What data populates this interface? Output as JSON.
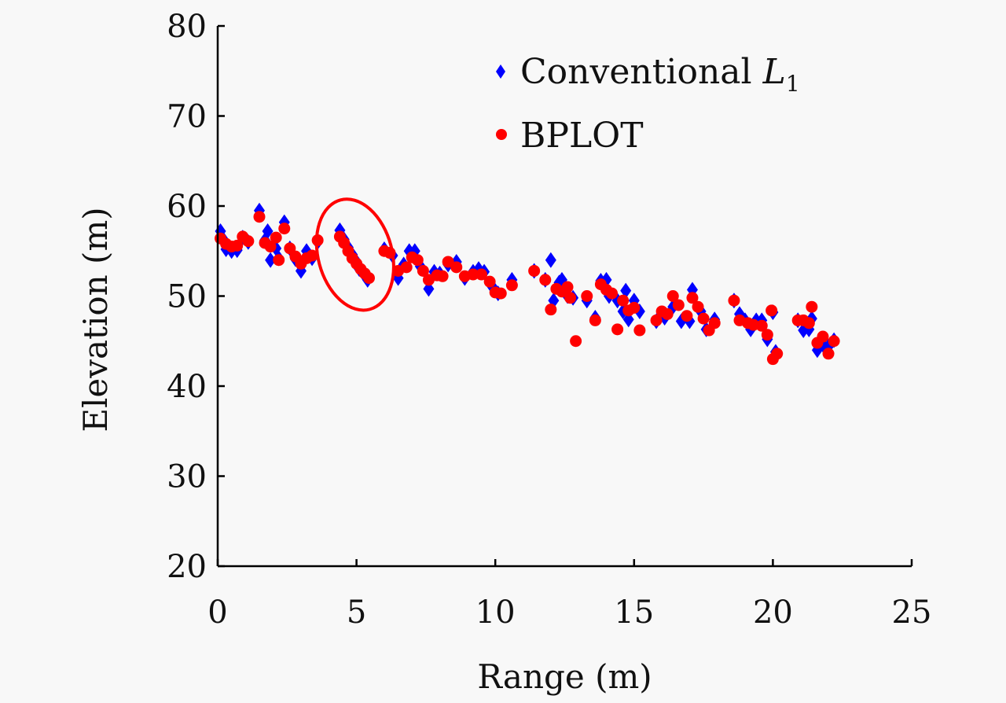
{
  "chart_data": {
    "type": "scatter",
    "title": "",
    "xlabel": "Range (m)",
    "ylabel": "Elevation (m)",
    "xlim": [
      0,
      25
    ],
    "ylim": [
      20,
      80
    ],
    "xticks": [
      0,
      5,
      10,
      15,
      20,
      25
    ],
    "yticks": [
      20,
      30,
      40,
      50,
      60,
      70,
      80
    ],
    "grid": false,
    "legend_position": "top-right",
    "annotation": {
      "type": "ellipse",
      "description": "red ellipse highlighting points near range 4.4-5.4 m, elevation 52-57 m",
      "center": [
        4.95,
        54.6
      ],
      "color": "#ff0000"
    },
    "series": [
      {
        "name": "Conventional L1",
        "legend_label": "Conventional ",
        "legend_math": "L",
        "legend_sub": "1",
        "marker": "diamond",
        "color": "#0000ff",
        "points": [
          [
            0.1,
            57.2
          ],
          [
            0.2,
            56.3
          ],
          [
            0.3,
            55.2
          ],
          [
            0.5,
            55.0
          ],
          [
            0.7,
            55.1
          ],
          [
            0.9,
            56.5
          ],
          [
            1.1,
            56.0
          ],
          [
            1.5,
            59.5
          ],
          [
            1.7,
            56.2
          ],
          [
            1.8,
            57.2
          ],
          [
            1.9,
            54.0
          ],
          [
            2.1,
            55.3
          ],
          [
            2.2,
            54.2
          ],
          [
            2.4,
            58.2
          ],
          [
            2.6,
            55.3
          ],
          [
            2.8,
            54.1
          ],
          [
            3.0,
            52.8
          ],
          [
            3.2,
            55.0
          ],
          [
            3.4,
            54.2
          ],
          [
            3.6,
            56.0
          ],
          [
            4.4,
            57.3
          ],
          [
            4.55,
            56.3
          ],
          [
            4.7,
            55.4
          ],
          [
            4.85,
            54.6
          ],
          [
            5.0,
            53.8
          ],
          [
            5.1,
            53.0
          ],
          [
            5.25,
            52.5
          ],
          [
            5.4,
            51.8
          ],
          [
            6.0,
            55.2
          ],
          [
            6.3,
            54.5
          ],
          [
            6.5,
            52.0
          ],
          [
            6.7,
            53.5
          ],
          [
            6.9,
            55.0
          ],
          [
            7.1,
            55.0
          ],
          [
            7.3,
            53.3
          ],
          [
            7.6,
            50.8
          ],
          [
            7.8,
            52.7
          ],
          [
            8.0,
            52.5
          ],
          [
            8.3,
            53.5
          ],
          [
            8.6,
            53.8
          ],
          [
            8.9,
            52.0
          ],
          [
            9.2,
            52.7
          ],
          [
            9.4,
            53.0
          ],
          [
            9.6,
            52.7
          ],
          [
            9.9,
            51.0
          ],
          [
            10.1,
            50.3
          ],
          [
            10.6,
            51.8
          ],
          [
            11.4,
            52.8
          ],
          [
            11.8,
            51.8
          ],
          [
            12.0,
            54.0
          ],
          [
            12.1,
            49.5
          ],
          [
            12.3,
            51.5
          ],
          [
            12.4,
            51.8
          ],
          [
            12.6,
            50.0
          ],
          [
            12.8,
            49.8
          ],
          [
            13.3,
            49.5
          ],
          [
            13.6,
            47.6
          ],
          [
            13.8,
            51.7
          ],
          [
            14.0,
            51.8
          ],
          [
            14.1,
            50.0
          ],
          [
            14.4,
            49.5
          ],
          [
            14.6,
            48.3
          ],
          [
            14.7,
            50.6
          ],
          [
            14.8,
            47.4
          ],
          [
            15.0,
            49.5
          ],
          [
            15.2,
            48.3
          ],
          [
            15.8,
            47.2
          ],
          [
            16.1,
            47.6
          ],
          [
            16.4,
            48.8
          ],
          [
            16.7,
            47.2
          ],
          [
            17.0,
            47.2
          ],
          [
            17.1,
            50.7
          ],
          [
            17.4,
            48.3
          ],
          [
            17.6,
            46.3
          ],
          [
            17.9,
            47.4
          ],
          [
            18.6,
            49.5
          ],
          [
            18.8,
            48.0
          ],
          [
            19.0,
            47.3
          ],
          [
            19.2,
            46.3
          ],
          [
            19.4,
            47.3
          ],
          [
            19.6,
            47.3
          ],
          [
            19.8,
            45.2
          ],
          [
            20.0,
            48.2
          ],
          [
            20.1,
            43.8
          ],
          [
            20.9,
            47.3
          ],
          [
            21.1,
            46.2
          ],
          [
            21.3,
            46.3
          ],
          [
            21.4,
            47.5
          ],
          [
            21.6,
            44.0
          ],
          [
            21.8,
            44.6
          ],
          [
            22.0,
            44.4
          ],
          [
            22.2,
            45.1
          ]
        ]
      },
      {
        "name": "BPLOT",
        "legend_label": "BPLOT",
        "marker": "circle",
        "color": "#ff0000",
        "points": [
          [
            0.1,
            56.4
          ],
          [
            0.3,
            55.8
          ],
          [
            0.5,
            55.5
          ],
          [
            0.7,
            55.6
          ],
          [
            0.9,
            56.6
          ],
          [
            1.1,
            56.1
          ],
          [
            1.5,
            58.8
          ],
          [
            1.7,
            55.9
          ],
          [
            1.9,
            55.5
          ],
          [
            2.1,
            56.5
          ],
          [
            2.2,
            54.0
          ],
          [
            2.4,
            57.5
          ],
          [
            2.6,
            55.3
          ],
          [
            2.8,
            54.4
          ],
          [
            3.0,
            53.6
          ],
          [
            3.2,
            54.2
          ],
          [
            3.4,
            54.5
          ],
          [
            3.6,
            56.2
          ],
          [
            4.4,
            56.6
          ],
          [
            4.55,
            55.9
          ],
          [
            4.7,
            55.0
          ],
          [
            4.85,
            54.2
          ],
          [
            5.0,
            53.6
          ],
          [
            5.15,
            53.0
          ],
          [
            5.3,
            52.5
          ],
          [
            5.45,
            52.0
          ],
          [
            6.0,
            55.0
          ],
          [
            6.2,
            54.8
          ],
          [
            6.5,
            52.8
          ],
          [
            6.8,
            53.2
          ],
          [
            7.0,
            54.3
          ],
          [
            7.2,
            54.0
          ],
          [
            7.4,
            52.8
          ],
          [
            7.6,
            51.8
          ],
          [
            7.9,
            52.3
          ],
          [
            8.1,
            52.2
          ],
          [
            8.3,
            53.8
          ],
          [
            8.6,
            53.2
          ],
          [
            8.9,
            52.2
          ],
          [
            9.2,
            52.4
          ],
          [
            9.5,
            52.4
          ],
          [
            9.8,
            51.6
          ],
          [
            10.0,
            50.4
          ],
          [
            10.2,
            50.3
          ],
          [
            10.6,
            51.2
          ],
          [
            11.4,
            52.8
          ],
          [
            11.8,
            51.8
          ],
          [
            12.0,
            48.5
          ],
          [
            12.2,
            50.8
          ],
          [
            12.4,
            50.5
          ],
          [
            12.6,
            51.0
          ],
          [
            12.7,
            49.8
          ],
          [
            12.9,
            45.0
          ],
          [
            13.3,
            50.0
          ],
          [
            13.6,
            47.3
          ],
          [
            13.8,
            51.3
          ],
          [
            14.0,
            50.7
          ],
          [
            14.2,
            50.3
          ],
          [
            14.4,
            46.3
          ],
          [
            14.6,
            49.5
          ],
          [
            14.8,
            48.4
          ],
          [
            15.0,
            48.7
          ],
          [
            15.2,
            46.2
          ],
          [
            15.8,
            47.3
          ],
          [
            16.0,
            48.3
          ],
          [
            16.2,
            48.0
          ],
          [
            16.4,
            50.0
          ],
          [
            16.6,
            49.0
          ],
          [
            16.9,
            47.8
          ],
          [
            17.1,
            49.8
          ],
          [
            17.3,
            48.8
          ],
          [
            17.5,
            47.5
          ],
          [
            17.7,
            46.2
          ],
          [
            17.9,
            47.0
          ],
          [
            18.6,
            49.5
          ],
          [
            18.8,
            47.3
          ],
          [
            19.1,
            47.0
          ],
          [
            19.3,
            46.8
          ],
          [
            19.6,
            46.7
          ],
          [
            19.8,
            45.7
          ],
          [
            19.95,
            48.4
          ],
          [
            20.0,
            43.0
          ],
          [
            20.15,
            43.6
          ],
          [
            20.9,
            47.3
          ],
          [
            21.1,
            47.3
          ],
          [
            21.3,
            47.0
          ],
          [
            21.4,
            48.8
          ],
          [
            21.6,
            44.8
          ],
          [
            21.8,
            45.5
          ],
          [
            22.0,
            43.6
          ],
          [
            22.2,
            45.0
          ]
        ]
      }
    ]
  }
}
